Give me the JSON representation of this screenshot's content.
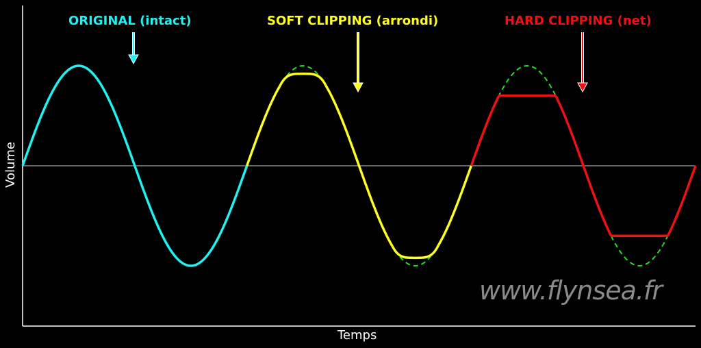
{
  "chart_data": {
    "type": "line",
    "xlabel": "Temps",
    "ylabel": "Volume",
    "ylim": [
      -1.15,
      1.7
    ],
    "xlim": [
      0,
      3
    ],
    "grid": false,
    "segments": [
      {
        "label": "ORIGINAL (intact)",
        "color": "#1ef2f2",
        "x_range": [
          0,
          1
        ],
        "clip": "none",
        "clip_level": 1.0
      },
      {
        "label": "SOFT CLIPPING (arrondi)",
        "color": "#ffff22",
        "x_range": [
          1,
          2
        ],
        "clip": "soft",
        "clip_level": 0.8,
        "reference_color": "#22dd22"
      },
      {
        "label": "HARD CLIPPING (net)",
        "color": "#ee1111",
        "x_range": [
          2,
          3
        ],
        "clip": "hard",
        "clip_level": 0.7,
        "reference_color": "#22dd22"
      }
    ],
    "signal": "sine, amplitude 1, 1 cycle per segment"
  },
  "watermark": "www.flynsea.fr"
}
